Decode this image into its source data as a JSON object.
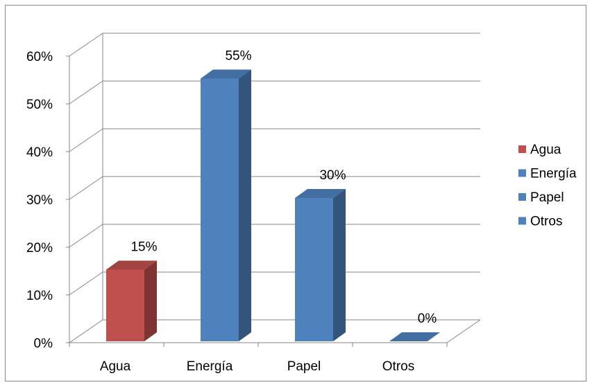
{
  "chart_data": {
    "type": "bar",
    "style": "3d-column",
    "categories": [
      "Agua",
      "Energía",
      "Papel",
      "Otros"
    ],
    "values": [
      15,
      55,
      30,
      0
    ],
    "value_labels": [
      "15%",
      "55%",
      "30%",
      "0%"
    ],
    "colors": [
      "#C0504D",
      "#4F81BD",
      "#4F81BD",
      "#4F81BD"
    ],
    "ylim": [
      0,
      60
    ],
    "yticks": [
      "0%",
      "10%",
      "20%",
      "30%",
      "40%",
      "50%",
      "60%"
    ],
    "title": "",
    "xlabel": "",
    "ylabel": "",
    "grid": true,
    "legend": {
      "position": "right",
      "entries": [
        {
          "label": "Agua",
          "color": "#C0504D"
        },
        {
          "label": "Energía",
          "color": "#4F81BD"
        },
        {
          "label": "Papel",
          "color": "#4F81BD"
        },
        {
          "label": "Otros",
          "color": "#4F81BD"
        }
      ]
    }
  }
}
